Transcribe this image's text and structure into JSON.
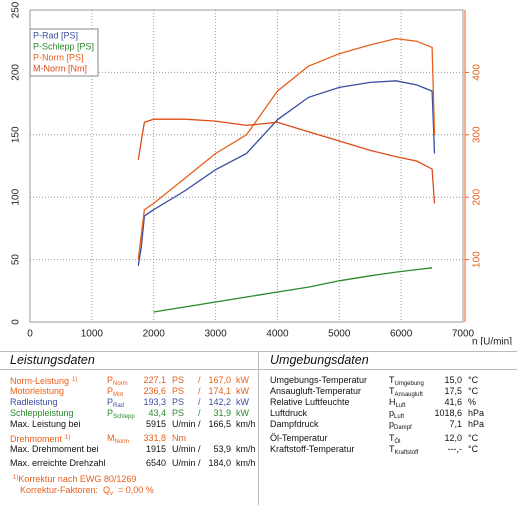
{
  "chart_data": {
    "type": "line",
    "x": [
      1750,
      1800,
      1850,
      2000,
      2500,
      3000,
      3500,
      4000,
      4500,
      5000,
      5500,
      5915,
      6250,
      6500,
      6540
    ],
    "series": [
      {
        "name": "P-Rad [PS]",
        "color": "#3a4ea0",
        "values": [
          45,
          60,
          85,
          90,
          105,
          122,
          135,
          162,
          180,
          188,
          192,
          193.3,
          190,
          185,
          135
        ]
      },
      {
        "name": "P-Schlepp [PS]",
        "color": "#2a8a2a",
        "values": [
          null,
          null,
          null,
          8,
          12,
          16,
          20,
          24,
          28,
          33,
          37,
          40,
          42,
          43.4,
          null
        ]
      },
      {
        "name": "P-Norm [PS]",
        "color": "#e8601c",
        "values": [
          50,
          70,
          90,
          95,
          115,
          135,
          150,
          185,
          205,
          215,
          222,
          227.1,
          225,
          220,
          150
        ]
      },
      {
        "name": "M-Norm [Nm]",
        "color": "#e04a18",
        "axis": "y2",
        "values": [
          260,
          290,
          320,
          325,
          325,
          322,
          315,
          320,
          305,
          290,
          275,
          265,
          258,
          245,
          190
        ]
      }
    ],
    "xlim": [
      0,
      7000
    ],
    "xticks": [
      0,
      1000,
      2000,
      3000,
      4000,
      5000,
      6000,
      7000
    ],
    "ylim": [
      0,
      250
    ],
    "yticks": [
      0,
      50,
      100,
      150,
      200,
      250
    ],
    "y2lim": [
      0,
      500
    ],
    "y2ticks": [
      100,
      200,
      300,
      400
    ],
    "y2color": "#e8601c",
    "x_label": "n [U/min]",
    "grid": true,
    "legend": "upper left"
  },
  "leistungsdaten": {
    "title": "Leistungsdaten",
    "rows": [
      {
        "label": "Norm-Leistung",
        "note": "1)",
        "color": "#e8601c",
        "symbol": {
          "main": "P",
          "sub": "Norm"
        },
        "v1": "227,1",
        "u1": "PS",
        "sep": "/",
        "v2": "167,0",
        "u2": "kW"
      },
      {
        "label": "Motorleistung",
        "color": "#e8601c",
        "symbol": {
          "main": "P",
          "sub": "Mot"
        },
        "v1": "236,6",
        "u1": "PS",
        "sep": "/",
        "v2": "174,1",
        "u2": "kW"
      },
      {
        "label": "Radleistung",
        "color": "#3a4ea0",
        "symbol": {
          "main": "P",
          "sub": "Rad"
        },
        "v1": "193,3",
        "u1": "PS",
        "sep": "/",
        "v2": "142,2",
        "u2": "kW"
      },
      {
        "label": "Schleppleistung",
        "color": "#2a8a2a",
        "symbol": {
          "main": "P",
          "sub": "Schlepp"
        },
        "v1": "43,4",
        "u1": "PS",
        "sep": "/",
        "v2": "31,9",
        "u2": "kW"
      },
      {
        "label": "Max. Leistung bei",
        "color": "#111111",
        "v1": "5915",
        "u1": "U/min",
        "sep": "/",
        "v2": "166,5",
        "u2": "km/h"
      },
      {
        "label": "Drehmoment",
        "note": "1)",
        "color": "#e8601c",
        "symbol": {
          "main": "M",
          "sub": "Norm"
        },
        "v1": "331,8",
        "u1": "Nm"
      },
      {
        "label": "Max. Drehmoment bei",
        "color": "#111111",
        "v1": "1915",
        "u1": "U/min",
        "sep": "/",
        "v2": "53,9",
        "u2": "km/h"
      },
      {
        "label": "Max. erreichte Drehzahl",
        "color": "#111111",
        "v1": "6540",
        "u1": "U/min",
        "sep": "/",
        "v2": "184,0",
        "u2": "km/h"
      }
    ],
    "notes": [
      {
        "mark": "1)",
        "text": "Korrektur nach EWG 80/1269",
        "color": "#e8601c"
      },
      {
        "text": "Korrektur-Faktoren:",
        "symbol": {
          "main": "Q",
          "sub": "v"
        },
        "value": "=  0,00 %",
        "color": "#e8601c"
      }
    ]
  },
  "umgebungsdaten": {
    "title": "Umgebungsdaten",
    "rows": [
      {
        "label": "Umgebungs-Temperatur",
        "symbol": {
          "main": "T",
          "sub": "Umgebung"
        },
        "v1": "15,0",
        "u1": "°C"
      },
      {
        "label": "Ansaugluft-Temperatur",
        "symbol": {
          "main": "T",
          "sub": "Ansaugluft"
        },
        "v1": "17,5",
        "u1": "°C"
      },
      {
        "label": "Relative Luftfeuchte",
        "symbol": {
          "main": "H",
          "sub": "Luft"
        },
        "v1": "41,6",
        "u1": "%"
      },
      {
        "label": "Luftdruck",
        "symbol": {
          "main": "p",
          "sub": "Luft"
        },
        "v1": "1018,6",
        "u1": "hPa"
      },
      {
        "label": "Dampfdruck",
        "symbol": {
          "main": "p",
          "sub": "Dampf"
        },
        "v1": "7,1",
        "u1": "hPa"
      },
      {
        "label": "Öl-Temperatur",
        "symbol": {
          "main": "T",
          "sub": "Öl"
        },
        "v1": "12,0",
        "u1": "°C"
      },
      {
        "label": "Kraftstoff-Temperatur",
        "symbol": {
          "main": "T",
          "sub": "Kraftstoff"
        },
        "v1": "---,-",
        "u1": "°C"
      }
    ]
  }
}
